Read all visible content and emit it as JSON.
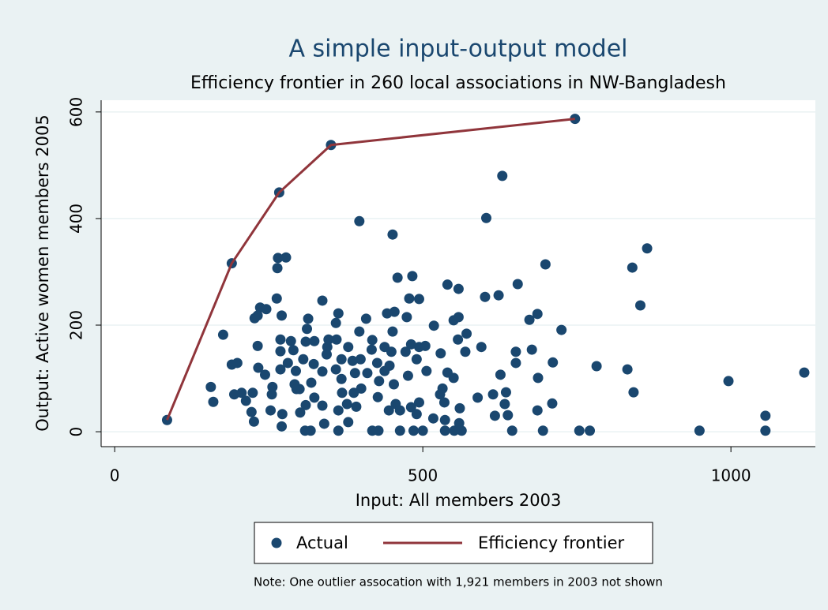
{
  "chart_data": {
    "type": "scatter",
    "title": "A simple input-output model",
    "subtitle": "Efficiency frontier in 260 local associations in NW-Bangladesh",
    "x_label": "Input: All members 2003",
    "y_label": "Output: Active women members 2005",
    "note": "Note: One outlier assocation with 1,921 members in 2003 not shown",
    "xlim": [
      -22,
      1137
    ],
    "ylim": [
      -28,
      622
    ],
    "xticks": [
      0,
      500,
      1000
    ],
    "yticks": [
      0,
      200,
      400,
      600
    ],
    "grid": true,
    "legend": "bottom",
    "series": [
      {
        "name": "Actual",
        "type": "scatter",
        "color": "#1a476f",
        "x": [
          85,
          190,
          267,
          351,
          747,
          397,
          451,
          629,
          603,
          265,
          278,
          264,
          263,
          840,
          864,
          853,
          842,
          832,
          782,
          771,
          754,
          949,
          996,
          1056,
          1056,
          1119,
          699,
          725,
          686,
          673,
          654,
          623,
          601,
          677,
          651,
          651,
          711,
          687,
          710,
          686,
          695,
          645,
          626,
          635,
          633,
          638,
          617,
          614,
          589,
          595,
          571,
          569,
          557,
          563,
          551,
          536,
          559,
          536,
          535,
          560,
          550,
          550,
          558,
          558,
          540,
          518,
          529,
          540,
          532,
          528,
          517,
          500,
          485,
          494,
          483,
          459,
          478,
          474,
          481,
          472,
          494,
          504,
          506,
          490,
          481,
          494,
          490,
          463,
          476,
          454,
          442,
          451,
          438,
          449,
          446,
          438,
          453,
          456,
          463,
          445,
          428,
          418,
          427,
          429,
          426,
          417,
          410,
          418,
          408,
          397,
          399,
          386,
          390,
          400,
          388,
          392,
          377,
          379,
          363,
          363,
          369,
          368,
          359,
          368,
          379,
          360,
          345,
          359,
          363,
          337,
          347,
          344,
          337,
          323,
          319,
          324,
          337,
          340,
          318,
          309,
          301,
          310,
          300,
          292,
          294,
          290,
          286,
          281,
          269,
          269,
          269,
          271,
          314,
          312,
          310,
          306,
          324,
          272,
          271,
          253,
          255,
          244,
          233,
          232,
          236,
          232,
          224,
          226,
          222,
          213,
          206,
          194,
          190,
          199,
          176,
          156,
          160,
          246,
          227,
          295,
          256
        ],
        "values": [
          22,
          316,
          449,
          538,
          587,
          395,
          370,
          480,
          401,
          326,
          327,
          307,
          250,
          308,
          344,
          237,
          74,
          117,
          123,
          2,
          2,
          2,
          95,
          30,
          2,
          111,
          314,
          191,
          221,
          210,
          277,
          256,
          253,
          154,
          150,
          129,
          130,
          101,
          53,
          40,
          2,
          2,
          107,
          74,
          52,
          31,
          30,
          70,
          64,
          159,
          184,
          150,
          173,
          2,
          2,
          2,
          16,
          22,
          55,
          44,
          101,
          209,
          215,
          268,
          276,
          199,
          147,
          111,
          81,
          70,
          25,
          2,
          2,
          249,
          292,
          289,
          250,
          215,
          164,
          150,
          159,
          161,
          114,
          136,
          46,
          55,
          33,
          2,
          105,
          225,
          222,
          188,
          159,
          150,
          124,
          114,
          89,
          52,
          40,
          40,
          2,
          2,
          65,
          95,
          129,
          154,
          110,
          172,
          212,
          188,
          136,
          133,
          110,
          81,
          73,
          47,
          52,
          18,
          2,
          40,
          73,
          99,
          117,
          136,
          159,
          173,
          159,
          204,
          222,
          246,
          173,
          145,
          113,
          127,
          92,
          64,
          49,
          15,
          2,
          2,
          36,
          50,
          80,
          89,
          114,
          153,
          170,
          129,
          117,
          151,
          173,
          218,
          212,
          193,
          169,
          136,
          170,
          33,
          10,
          40,
          70,
          107,
          120,
          161,
          233,
          218,
          73,
          19,
          37,
          58,
          73,
          70,
          126,
          129,
          182,
          84,
          56,
          230,
          213,
          80,
          84
        ]
      },
      {
        "name": "Efficiency frontier",
        "type": "line",
        "color": "#90353b",
        "x": [
          85,
          190,
          267,
          351,
          747
        ],
        "values": [
          22,
          316,
          449,
          538,
          587
        ]
      }
    ]
  }
}
